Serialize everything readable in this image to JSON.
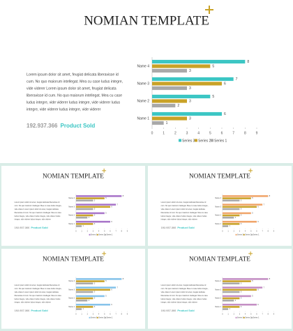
{
  "slide": {
    "title": "NOMIAN TEMPLATE",
    "body": [
      "Lorem ipsum dolor sit amet, feugiat delicata liberavisse id",
      "cum. No quo maiorum intellegat. Mea cu case ludus integre,",
      "vide viderer Lorem ipsum dolor sit amet, feugiat delicata",
      "liberavisse id cum. No quo maiorum intellegat. Mea cu case",
      "ludus integre, vide viderer ludus integre, vide viderer ludus",
      "integre, vide viderer ludus integre, vide viderer"
    ],
    "number": "192.937.366",
    "label": "Product Sold"
  },
  "chart_data": {
    "type": "bar",
    "horizontal": true,
    "categories": [
      "Name 1",
      "Name 2",
      "Name 3",
      "Name 4"
    ],
    "series": [
      {
        "name": "Series 3",
        "color": "#3cc6c4",
        "values": [
          6,
          5,
          7,
          8
        ]
      },
      {
        "name": "Series 2",
        "color": "#c9a227",
        "values": [
          3,
          3,
          6,
          5
        ]
      },
      {
        "name": "Series 1",
        "color": "#a9a9a9",
        "values": [
          1,
          2,
          3,
          3
        ]
      }
    ],
    "xlim": [
      0,
      9
    ],
    "xticks": [
      0,
      1,
      2,
      3,
      4,
      5,
      6,
      7,
      8,
      9
    ],
    "legend": "bottom"
  },
  "thumbnails": [
    {
      "accent": "#a875c9"
    },
    {
      "accent": "#f0a56a"
    },
    {
      "accent": "#86c3ea"
    },
    {
      "accent": "#c48fc4"
    }
  ]
}
